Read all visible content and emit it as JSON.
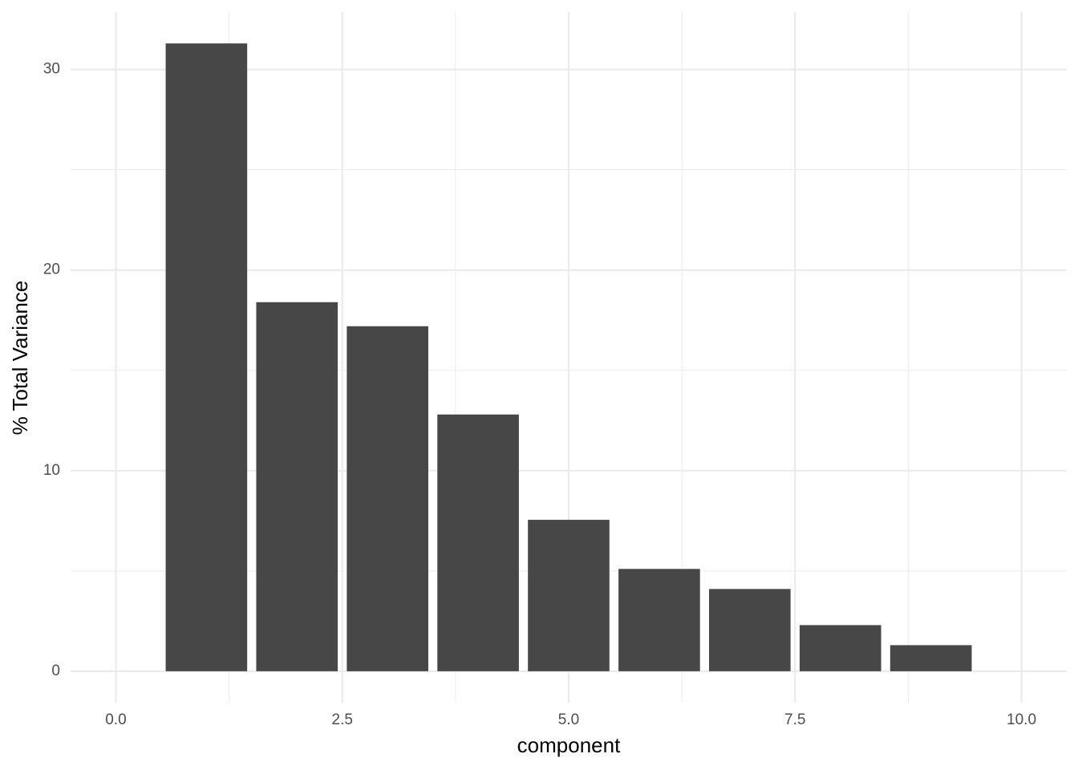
{
  "chart_data": {
    "type": "bar",
    "x_label": "component",
    "y_label": "% Total Variance",
    "x": [
      1,
      2,
      3,
      4,
      5,
      6,
      7,
      8,
      9
    ],
    "values": [
      31.3,
      18.4,
      17.2,
      12.8,
      7.55,
      5.1,
      4.1,
      2.3,
      1.3
    ],
    "color": "#474747",
    "bar_width": 0.9,
    "xlim": [
      -0.5,
      10.5
    ],
    "xticks": [
      {
        "value": 0,
        "label": "0.0"
      },
      2.5,
      {
        "value": 5,
        "label": "5.0"
      },
      7.5,
      {
        "value": 10,
        "label": "10.0"
      }
    ],
    "xminorticks": [
      1.25,
      3.75,
      6.25,
      8.75
    ],
    "ylim": [
      -1.565,
      32.865
    ],
    "yticks": [
      0,
      10,
      20,
      30
    ],
    "yminorticks": [
      5,
      15,
      25
    ],
    "grid": true
  }
}
